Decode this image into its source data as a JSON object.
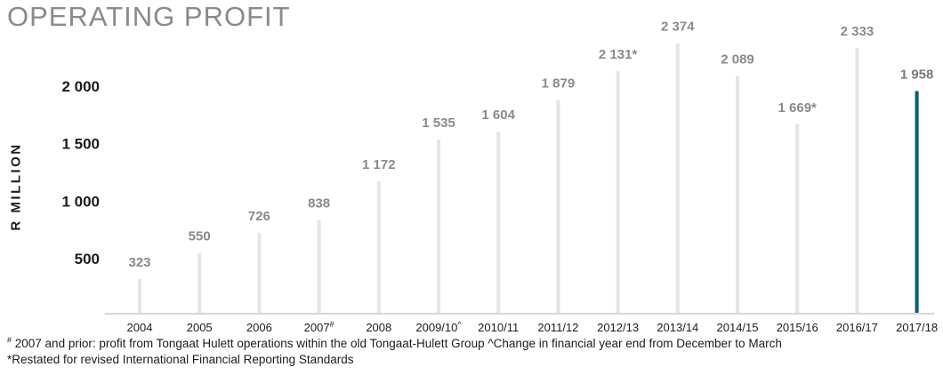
{
  "chart_data": {
    "type": "bar",
    "title": "OPERATING PROFIT",
    "ylabel": "R MILLION",
    "xlabel": "",
    "ylim": [
      0,
      2700
    ],
    "yticks": [
      500,
      1000,
      1500,
      2000
    ],
    "ytick_labels": [
      "500",
      "1 000",
      "1 500",
      "2 000"
    ],
    "grid": false,
    "colors": {
      "bar": "#e5e5e5",
      "highlight": "#0f5a78",
      "value_label": "#8a8a8a",
      "value_highlight": "#7a7a7a",
      "axis": "#c8c8c8"
    },
    "categories": [
      "2004",
      "2005",
      "2006",
      "2007",
      "2008",
      "2009/10",
      "2010/11",
      "2011/12",
      "2012/13",
      "2013/14",
      "2014/15",
      "2015/16",
      "2016/17",
      "2017/18"
    ],
    "category_marks": [
      "",
      "",
      "",
      "#",
      "",
      "^",
      "",
      "",
      "",
      "",
      "",
      "",
      "",
      ""
    ],
    "values": [
      323,
      550,
      726,
      838,
      1172,
      1535,
      1604,
      1879,
      2131,
      2374,
      2089,
      1669,
      2333,
      1958
    ],
    "value_labels": [
      "323",
      "550",
      "726",
      "838",
      "1 172",
      "1 535",
      "1 604",
      "1 879",
      "2 131*",
      "2 374",
      "2 089",
      "1 669*",
      "2 333",
      "1 958"
    ],
    "highlight_index": 13
  },
  "footnotes": {
    "line1_mark": "#",
    "line1": " 2007 and prior: profit from Tongaat Hulett operations within the old Tongaat-Hulett Group   ^Change in financial year end from December to March",
    "line2": "*Restated for revised International Financial Reporting Standards"
  }
}
